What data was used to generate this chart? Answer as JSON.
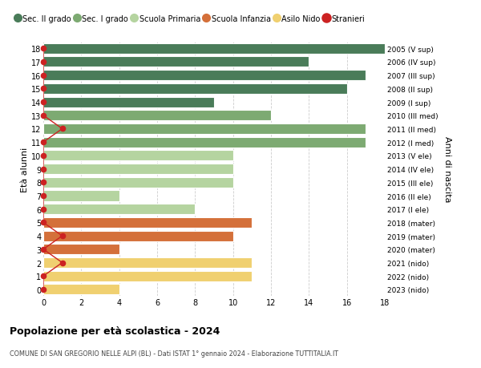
{
  "ages": [
    18,
    17,
    16,
    15,
    14,
    13,
    12,
    11,
    10,
    9,
    8,
    7,
    6,
    5,
    4,
    3,
    2,
    1,
    0
  ],
  "years": [
    "2005 (V sup)",
    "2006 (IV sup)",
    "2007 (III sup)",
    "2008 (II sup)",
    "2009 (I sup)",
    "2010 (III med)",
    "2011 (II med)",
    "2012 (I med)",
    "2013 (V ele)",
    "2014 (IV ele)",
    "2015 (III ele)",
    "2016 (II ele)",
    "2017 (I ele)",
    "2018 (mater)",
    "2019 (mater)",
    "2020 (mater)",
    "2021 (nido)",
    "2022 (nido)",
    "2023 (nido)"
  ],
  "values": [
    18,
    14,
    17,
    16,
    9,
    12,
    17,
    17,
    10,
    10,
    10,
    4,
    8,
    11,
    10,
    4,
    11,
    11,
    4
  ],
  "colors": [
    "#4a7c59",
    "#4a7c59",
    "#4a7c59",
    "#4a7c59",
    "#4a7c59",
    "#7daa72",
    "#7daa72",
    "#7daa72",
    "#b5d4a0",
    "#b5d4a0",
    "#b5d4a0",
    "#b5d4a0",
    "#b5d4a0",
    "#d4703a",
    "#d4703a",
    "#d4703a",
    "#f0d070",
    "#f0d070",
    "#f0d070"
  ],
  "stranieri_x": [
    0,
    0,
    0,
    0,
    0,
    0,
    1,
    0,
    0,
    0,
    0,
    0,
    0,
    0,
    1,
    0,
    1,
    0,
    0
  ],
  "legend_labels": [
    "Sec. II grado",
    "Sec. I grado",
    "Scuola Primaria",
    "Scuola Infanzia",
    "Asilo Nido",
    "Stranieri"
  ],
  "legend_colors": [
    "#4a7c59",
    "#7daa72",
    "#b5d4a0",
    "#d4703a",
    "#f0d070",
    "#cc2222"
  ],
  "title": "Popolazione per età scolastica - 2024",
  "subtitle": "COMUNE DI SAN GREGORIO NELLE ALPI (BL) - Dati ISTAT 1° gennaio 2024 - Elaborazione TUTTITALIA.IT",
  "ylabel": "Età alunni",
  "ylabel2": "Anni di nascita",
  "xlim": [
    0,
    18
  ],
  "bar_height": 0.78,
  "background_color": "#ffffff",
  "grid_color": "#cccccc",
  "stranieri_dot_color": "#cc2222",
  "stranieri_line_color": "#cc2222"
}
